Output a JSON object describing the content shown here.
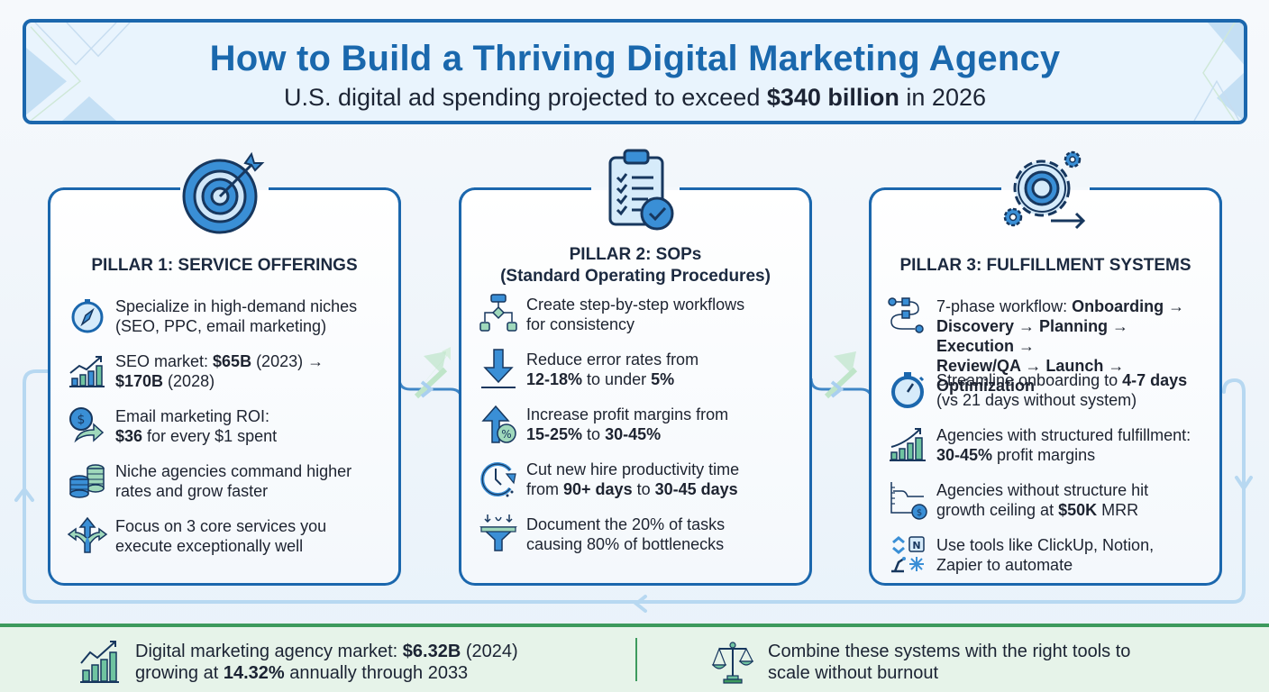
{
  "header": {
    "title": "How to Build a Thriving Digital Marketing Agency",
    "subtitle_pre": "U.S. digital ad spending projected to exceed ",
    "subtitle_bold": "$340 billion",
    "subtitle_post": " in 2026"
  },
  "pillars": [
    {
      "title_line1": "PILLAR 1: SERVICE OFFERINGS",
      "title_line2": "",
      "icon": "target-icon",
      "items": [
        {
          "icon": "compass-icon",
          "l1": [
            {
              "t": "Specialize in high-demand niches",
              "b": false
            }
          ],
          "l2": [
            {
              "t": "(SEO, PPC, email marketing)",
              "b": false
            }
          ]
        },
        {
          "icon": "growth-chart-icon",
          "l1": [
            {
              "t": "SEO market: ",
              "b": false
            },
            {
              "t": "$65B",
              "b": true
            },
            {
              "t": " (2023) →",
              "b": false
            }
          ],
          "l2": [
            {
              "t": "$170B",
              "b": true
            },
            {
              "t": " (2028)",
              "b": false
            }
          ]
        },
        {
          "icon": "dollar-return-icon",
          "l1": [
            {
              "t": "Email marketing ROI:",
              "b": false
            }
          ],
          "l2": [
            {
              "t": "$36",
              "b": true
            },
            {
              "t": " for every $1 spent",
              "b": false
            }
          ]
        },
        {
          "icon": "coin-stacks-icon",
          "l1": [
            {
              "t": "Niche agencies command higher",
              "b": false
            }
          ],
          "l2": [
            {
              "t": "rates and grow faster",
              "b": false
            }
          ]
        },
        {
          "icon": "split-arrows-icon",
          "l1": [
            {
              "t": "Focus on 3 core services you",
              "b": false
            }
          ],
          "l2": [
            {
              "t": "execute exceptionally well",
              "b": false
            }
          ]
        }
      ]
    },
    {
      "title_line1": "PILLAR 2: SOPs",
      "title_line2": "(Standard Operating Procedures)",
      "icon": "clipboard-check-icon",
      "items": [
        {
          "icon": "flowchart-icon",
          "l1": [
            {
              "t": "Create step-by-step workflows",
              "b": false
            }
          ],
          "l2": [
            {
              "t": "for consistency",
              "b": false
            }
          ]
        },
        {
          "icon": "arrow-down-icon",
          "l1": [
            {
              "t": "Reduce error rates from",
              "b": false
            }
          ],
          "l2": [
            {
              "t": "12-18%",
              "b": true
            },
            {
              "t": " to under ",
              "b": false
            },
            {
              "t": "5%",
              "b": true
            }
          ]
        },
        {
          "icon": "percent-up-icon",
          "l1": [
            {
              "t": "Increase profit margins from",
              "b": false
            }
          ],
          "l2": [
            {
              "t": "15-25%",
              "b": true
            },
            {
              "t": " to ",
              "b": false
            },
            {
              "t": "30-45%",
              "b": true
            }
          ]
        },
        {
          "icon": "clock-refresh-icon",
          "l1": [
            {
              "t": "Cut new hire productivity time",
              "b": false
            }
          ],
          "l2": [
            {
              "t": "from ",
              "b": false
            },
            {
              "t": "90+ days",
              "b": true
            },
            {
              "t": " to ",
              "b": false
            },
            {
              "t": "30-45 days",
              "b": true
            }
          ]
        },
        {
          "icon": "funnel-icon",
          "l1": [
            {
              "t": "Document the 20% of tasks",
              "b": false
            }
          ],
          "l2": [
            {
              "t": "causing 80% of bottlenecks",
              "b": false
            }
          ]
        }
      ]
    },
    {
      "title_line1": "PILLAR 3: FULFILLMENT SYSTEMS",
      "title_line2": "",
      "icon": "gears-icon",
      "items": [
        {
          "icon": "workflow-path-icon",
          "l1": [
            {
              "t": "7-phase workflow: ",
              "b": false
            },
            {
              "t": "Onboarding →",
              "b": true
            }
          ],
          "l2": [
            {
              "t": "Discovery → Planning → Execution →",
              "b": true
            }
          ],
          "l3": [
            {
              "t": "Review/QA → Launch → Optimization",
              "b": true
            }
          ]
        },
        {
          "icon": "stopwatch-icon",
          "l1": [
            {
              "t": "Streamline onboarding to ",
              "b": false
            },
            {
              "t": "4-7 days",
              "b": true
            }
          ],
          "l2": [
            {
              "t": "(vs 21 days without system)",
              "b": false
            }
          ]
        },
        {
          "icon": "growth-chart-green-icon",
          "l1": [
            {
              "t": "Agencies with structured fulfillment:",
              "b": false
            }
          ],
          "l2": [
            {
              "t": "30-45%",
              "b": true
            },
            {
              "t": " profit margins",
              "b": false
            }
          ]
        },
        {
          "icon": "plateau-dollar-icon",
          "l1": [
            {
              "t": "Agencies without structure hit",
              "b": false
            }
          ],
          "l2": [
            {
              "t": "growth ceiling at ",
              "b": false
            },
            {
              "t": "$50K",
              "b": true
            },
            {
              "t": " MRR",
              "b": false
            }
          ]
        },
        {
          "icon": "tools-icon",
          "l1": [
            {
              "t": "Use tools like ClickUp, Notion,",
              "b": false
            }
          ],
          "l2": [
            {
              "t": "Zapier to automate",
              "b": false
            }
          ]
        }
      ]
    }
  ],
  "footer": {
    "left": {
      "icon": "bar-chart-trend-icon",
      "l1": [
        {
          "t": "Digital marketing agency market: ",
          "b": false
        },
        {
          "t": "$6.32B",
          "b": true
        },
        {
          "t": " (2024)",
          "b": false
        }
      ],
      "l2": [
        {
          "t": "growing at ",
          "b": false
        },
        {
          "t": "14.32%",
          "b": true
        },
        {
          "t": " annually through 2033",
          "b": false
        }
      ]
    },
    "right": {
      "icon": "balance-scale-icon",
      "l1": [
        {
          "t": "Combine these systems with the right tools to",
          "b": false
        }
      ],
      "l2": [
        {
          "t": "scale without burnout",
          "b": false
        }
      ]
    }
  },
  "colors": {
    "primary_blue": "#1b67ad",
    "light_blue": "#b9d9f2",
    "accent_green": "#3d9a5d",
    "text_dark": "#1c2a40"
  }
}
